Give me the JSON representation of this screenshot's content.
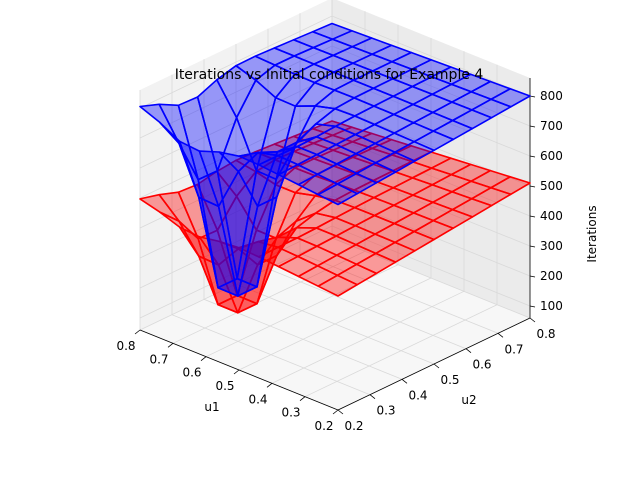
{
  "chart_data": {
    "type": "surface3d",
    "title": "Iterations vs Initial conditions for Example 4",
    "xlabel": "u1",
    "ylabel": "u2",
    "zlabel": "Iterations",
    "xlim": [
      0.2,
      0.8
    ],
    "ylim": [
      0.2,
      0.8
    ],
    "zlim": [
      60,
      860
    ],
    "x_ticks": [
      "0.2",
      "0.3",
      "0.4",
      "0.5",
      "0.6",
      "0.7",
      "0.8"
    ],
    "y_ticks": [
      "0.2",
      "0.3",
      "0.4",
      "0.5",
      "0.6",
      "0.7",
      "0.8"
    ],
    "z_ticks": [
      "100",
      "200",
      "300",
      "400",
      "500",
      "600",
      "700",
      "800"
    ],
    "grid": true,
    "series": [
      {
        "surface_color": "#ff0000",
        "edge_color": "#ff0000",
        "corners": {
          "u1_0.2_u2_0.2": 440,
          "u1_0.8_u2_0.2": 500,
          "u1_0.2_u2_0.8": 510,
          "u1_0.8_u2_0.8": 450
        },
        "min_point": {
          "u1": 0.65,
          "u2": 0.35,
          "iterations": 60
        }
      },
      {
        "surface_color": "#0000ff",
        "edge_color": "#0000ff",
        "corners": {
          "u1_0.2_u2_0.2": 745,
          "u1_0.8_u2_0.2": 810,
          "u1_0.2_u2_0.8": 800,
          "u1_0.8_u2_0.8": 775
        },
        "min_point": {
          "u1": 0.65,
          "u2": 0.35,
          "iterations": 60
        }
      }
    ]
  }
}
